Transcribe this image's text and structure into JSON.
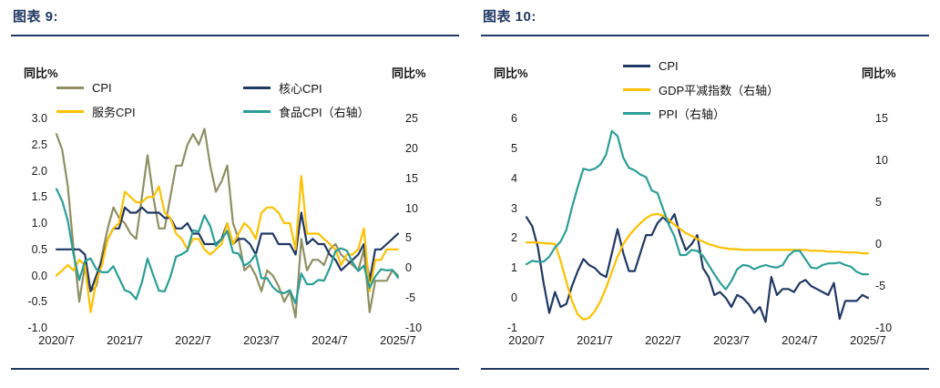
{
  "page": {
    "background": "#ffffff",
    "accent_color": "#1f3864"
  },
  "chart_data": [
    {
      "type": "line",
      "title": "图表 9:",
      "left_axis_label": "同比%",
      "right_axis_label": "同比%",
      "x_tick_labels": [
        "2020/7",
        "2021/7",
        "2022/7",
        "2023/7",
        "2024/7",
        "2025/7"
      ],
      "x_tick_positions": [
        0,
        12,
        24,
        36,
        48,
        60
      ],
      "left_axis": {
        "min": -1,
        "max": 3,
        "tick_labels": [
          "3.0",
          "2.5",
          "2.0",
          "1.5",
          "1.0",
          "0.5",
          "0.0",
          "-0.5",
          "-1.0"
        ]
      },
      "right_axis": {
        "min": -10,
        "max": 25,
        "tick_labels": [
          "25",
          "20",
          "15",
          "10",
          "5",
          "0",
          "-5",
          "-10"
        ]
      },
      "legend_position": "top",
      "grid": false,
      "series": [
        {
          "id": "cpi",
          "name": "CPI",
          "axis": "left",
          "color": "#8f8f62",
          "values": [
            2.7,
            2.4,
            1.7,
            0.5,
            -0.5,
            0.2,
            -0.3,
            -0.2,
            0.4,
            0.9,
            1.3,
            1.1,
            1.0,
            0.8,
            0.7,
            1.5,
            2.3,
            1.5,
            0.9,
            0.9,
            1.5,
            2.1,
            2.1,
            2.5,
            2.7,
            2.5,
            2.8,
            2.1,
            1.6,
            1.8,
            2.1,
            1.0,
            0.7,
            0.1,
            0.2,
            0.0,
            -0.3,
            0.1,
            0.0,
            -0.2,
            -0.5,
            -0.3,
            -0.8,
            0.7,
            0.1,
            0.3,
            0.3,
            0.2,
            0.5,
            0.6,
            0.4,
            0.3,
            0.2,
            0.1,
            0.5,
            -0.7,
            -0.1,
            -0.1,
            -0.1,
            0.1,
            0.0
          ]
        },
        {
          "id": "core-cpi",
          "name": "核心CPI",
          "axis": "left",
          "color": "#1f3864",
          "values": [
            0.5,
            0.5,
            0.5,
            0.5,
            0.5,
            0.4,
            -0.3,
            0.0,
            0.3,
            0.7,
            0.9,
            0.9,
            1.3,
            1.2,
            1.2,
            1.3,
            1.2,
            1.2,
            1.2,
            1.1,
            1.1,
            0.9,
            0.9,
            1.0,
            0.8,
            0.8,
            0.6,
            0.6,
            0.6,
            0.7,
            1.0,
            0.6,
            0.7,
            0.7,
            0.6,
            0.4,
            0.8,
            0.8,
            0.8,
            0.6,
            0.6,
            0.6,
            0.4,
            1.2,
            0.6,
            0.7,
            0.6,
            0.6,
            0.4,
            0.3,
            0.1,
            0.2,
            0.3,
            0.4,
            0.6,
            -0.1,
            0.5,
            0.5,
            0.6,
            0.7,
            0.8
          ]
        },
        {
          "id": "services-cpi",
          "name": "服务CPI",
          "axis": "left",
          "color": "#ffc000",
          "values": [
            0.0,
            0.1,
            0.2,
            0.1,
            0.3,
            0.2,
            -0.7,
            -0.1,
            0.2,
            0.7,
            0.9,
            1.0,
            1.6,
            1.5,
            1.4,
            1.4,
            1.5,
            1.5,
            1.7,
            1.2,
            1.1,
            0.8,
            0.7,
            0.5,
            0.7,
            0.7,
            0.5,
            0.4,
            0.5,
            0.6,
            1.0,
            0.6,
            0.8,
            1.0,
            0.9,
            0.7,
            1.2,
            1.3,
            1.3,
            1.2,
            1.0,
            1.0,
            0.5,
            1.9,
            0.8,
            0.8,
            0.8,
            0.7,
            0.6,
            0.5,
            0.2,
            0.4,
            0.4,
            0.5,
            0.9,
            -0.3,
            0.3,
            0.3,
            0.5,
            0.5,
            0.5
          ]
        },
        {
          "id": "food-cpi",
          "name": "食品CPI（右轴）",
          "axis": "right",
          "color": "#2b9e96",
          "values": [
            13.2,
            11.2,
            7.9,
            2.2,
            -2.0,
            1.2,
            1.6,
            -0.2,
            -0.7,
            -0.7,
            0.3,
            -1.7,
            -3.7,
            -4.1,
            -5.2,
            -2.4,
            1.6,
            -1.2,
            -3.8,
            -3.9,
            -1.5,
            1.9,
            2.3,
            2.9,
            6.3,
            6.1,
            8.8,
            7.0,
            3.7,
            4.8,
            6.2,
            2.6,
            2.4,
            0.4,
            1.0,
            2.3,
            -1.7,
            -1.7,
            -3.2,
            -4.0,
            -4.2,
            -3.7,
            -5.9,
            -0.9,
            -2.7,
            -2.7,
            -2.0,
            -2.1,
            0.0,
            2.8,
            3.3,
            2.9,
            1.0,
            -0.5,
            0.4,
            -3.3,
            -1.4,
            -0.2,
            -0.4,
            -0.3,
            -1.6
          ]
        }
      ]
    },
    {
      "type": "line",
      "title": "图表 10:",
      "left_axis_label": "同比%",
      "right_axis_label": "同比%",
      "x_tick_labels": [
        "2020/7",
        "2021/7",
        "2022/7",
        "2023/7",
        "2024/7",
        "2025/7"
      ],
      "x_tick_positions": [
        0,
        12,
        24,
        36,
        48,
        60
      ],
      "left_axis": {
        "min": -1,
        "max": 6,
        "tick_labels": [
          "6",
          "5",
          "4",
          "3",
          "2",
          "1",
          "0",
          "-1"
        ]
      },
      "right_axis": {
        "min": -10,
        "max": 15,
        "tick_labels": [
          "15",
          "10",
          "5",
          "0",
          "-5",
          "-10"
        ]
      },
      "legend_position": "top",
      "grid": false,
      "series": [
        {
          "id": "cpi",
          "name": "CPI",
          "axis": "left",
          "color": "#1f3864",
          "values": [
            2.7,
            2.4,
            1.7,
            0.5,
            -0.5,
            0.2,
            -0.3,
            -0.2,
            0.4,
            0.9,
            1.3,
            1.1,
            1.0,
            0.8,
            0.7,
            1.5,
            2.3,
            1.5,
            0.9,
            0.9,
            1.5,
            2.1,
            2.1,
            2.5,
            2.7,
            2.5,
            2.8,
            2.1,
            1.6,
            1.8,
            2.1,
            1.0,
            0.7,
            0.1,
            0.2,
            0.0,
            -0.3,
            0.1,
            0.0,
            -0.2,
            -0.5,
            -0.3,
            -0.8,
            0.7,
            0.1,
            0.3,
            0.3,
            0.2,
            0.5,
            0.6,
            0.4,
            0.3,
            0.2,
            0.1,
            0.5,
            -0.7,
            -0.1,
            -0.1,
            -0.1,
            0.1,
            0.0
          ]
        },
        {
          "id": "gdp-deflator",
          "name": "GDP平减指数（右轴）",
          "axis": "right",
          "color": "#ffc000",
          "values": [
            0.2,
            0.2,
            0.2,
            0.1,
            0.1,
            0.0,
            -2.0,
            -4.5,
            -6.8,
            -8.4,
            -9.0,
            -8.8,
            -8.0,
            -6.8,
            -5.2,
            -3.3,
            -1.5,
            0.0,
            1.0,
            1.8,
            2.5,
            3.1,
            3.5,
            3.6,
            3.4,
            2.9,
            2.3,
            1.8,
            1.3,
            1.0,
            0.6,
            0.3,
            0.0,
            -0.2,
            -0.4,
            -0.5,
            -0.6,
            -0.6,
            -0.7,
            -0.7,
            -0.7,
            -0.7,
            -0.7,
            -0.7,
            -0.7,
            -0.7,
            -0.7,
            -0.7,
            -0.7,
            -0.7,
            -0.8,
            -0.8,
            -0.8,
            -0.9,
            -0.9,
            -0.9,
            -1.0,
            -1.0,
            -1.0,
            -1.1,
            -1.1
          ]
        },
        {
          "id": "ppi",
          "name": "PPI（右轴）",
          "axis": "right",
          "color": "#2b9e96",
          "values": [
            -2.4,
            -2.0,
            -2.1,
            -2.1,
            -1.5,
            -0.4,
            0.3,
            1.7,
            4.4,
            6.8,
            9.0,
            8.8,
            9.0,
            9.5,
            10.7,
            13.5,
            12.9,
            10.3,
            9.1,
            8.8,
            8.3,
            8.0,
            6.4,
            6.1,
            4.2,
            2.3,
            0.9,
            -1.3,
            -1.3,
            -0.7,
            -0.8,
            -1.4,
            -2.5,
            -3.6,
            -4.6,
            -5.4,
            -4.4,
            -3.0,
            -2.5,
            -2.6,
            -3.0,
            -2.7,
            -2.5,
            -2.7,
            -2.8,
            -2.5,
            -1.4,
            -0.8,
            -0.8,
            -1.8,
            -2.8,
            -2.9,
            -2.5,
            -2.3,
            -2.3,
            -2.2,
            -2.5,
            -2.7,
            -3.3,
            -3.6,
            -3.6
          ]
        }
      ]
    }
  ]
}
